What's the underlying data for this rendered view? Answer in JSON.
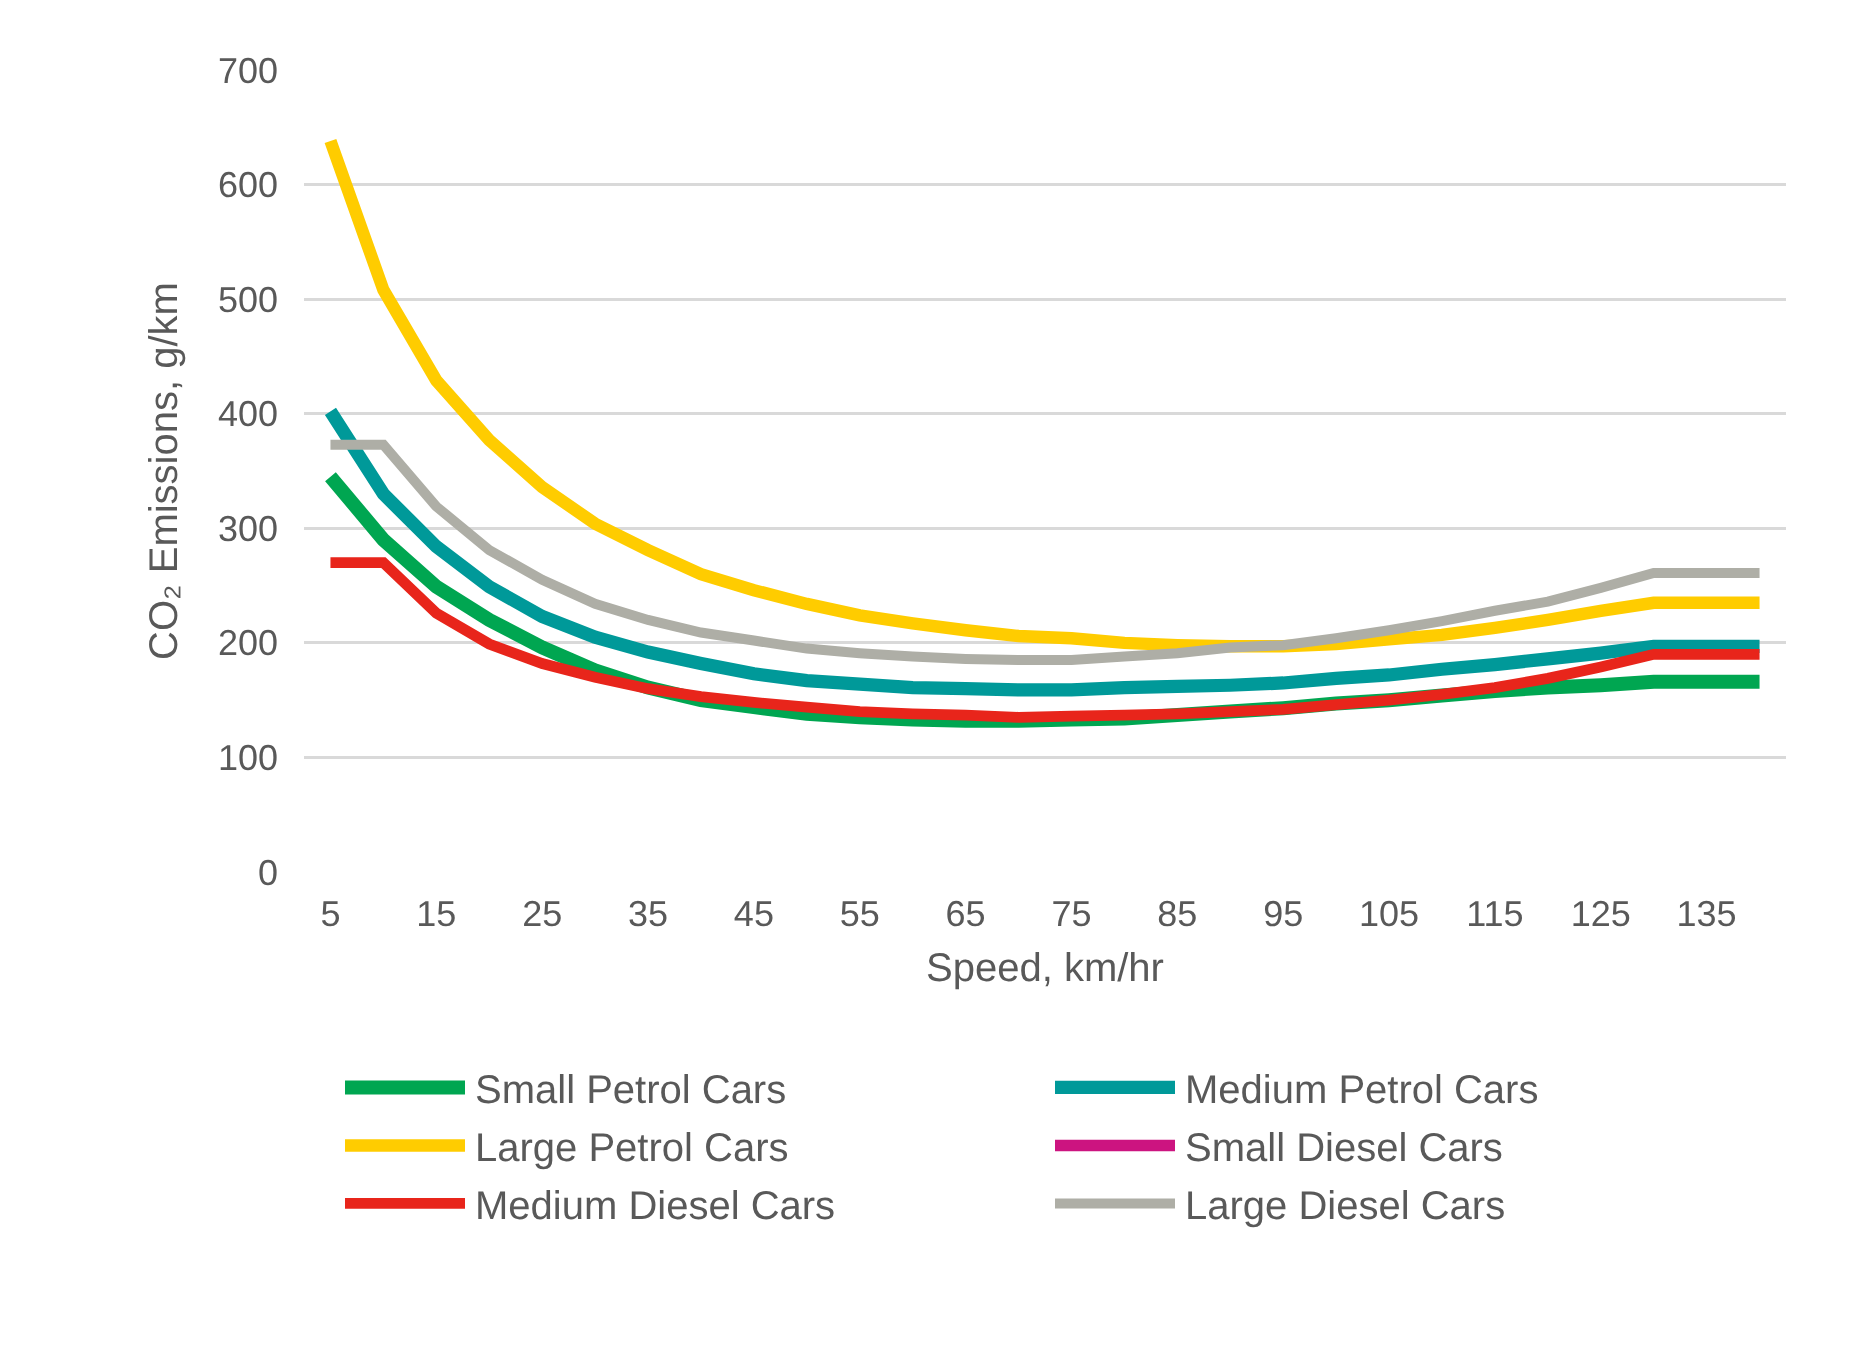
{
  "chart_data": {
    "type": "line",
    "xlabel": "Speed, km/hr",
    "ylabel": "CO₂ Emissions, g/km",
    "x": [
      5,
      10,
      15,
      20,
      25,
      30,
      35,
      40,
      45,
      50,
      55,
      60,
      65,
      70,
      75,
      80,
      85,
      90,
      95,
      100,
      105,
      110,
      115,
      120,
      125,
      130,
      135,
      140
    ],
    "xlim": [
      2.5,
      142.5
    ],
    "xticks": [
      5,
      15,
      25,
      35,
      45,
      55,
      65,
      75,
      85,
      95,
      105,
      115,
      125,
      135
    ],
    "ylim": [
      0,
      700
    ],
    "yticks": [
      0,
      100,
      200,
      300,
      400,
      500,
      600,
      700
    ],
    "grid": "y",
    "legend": "bottom",
    "marker": "none",
    "line_style": "solid",
    "series": [
      {
        "name": "Small Petrol Cars",
        "color": "#00a651",
        "values": [
          345,
          290,
          249,
          220,
          196,
          176,
          161,
          150,
          144,
          138,
          135,
          133,
          132,
          132,
          133,
          134,
          137,
          140,
          143,
          147,
          150,
          154,
          158,
          161,
          163,
          166,
          166,
          166
        ]
      },
      {
        "name": "Medium Petrol Cars",
        "color": "#009999",
        "values": [
          402,
          330,
          284,
          249,
          223,
          205,
          192,
          182,
          173,
          167,
          164,
          161,
          160,
          159,
          159,
          161,
          162,
          163,
          165,
          169,
          172,
          177,
          181,
          186,
          191,
          197,
          197,
          197
        ]
      },
      {
        "name": "Large Petrol Cars",
        "color": "#ffcc00",
        "values": [
          638,
          508,
          429,
          377,
          336,
          304,
          281,
          260,
          246,
          234,
          224,
          217,
          211,
          206,
          204,
          200,
          198,
          197,
          197,
          199,
          203,
          207,
          213,
          220,
          228,
          235,
          235,
          235
        ]
      },
      {
        "name": "Small Diesel Cars",
        "color": "#cc1480",
        "values": [
          null,
          null,
          null,
          null,
          null,
          null,
          null,
          null,
          null,
          null,
          null,
          null,
          null,
          null,
          null,
          null,
          null,
          null,
          null,
          null,
          null,
          null,
          null,
          null,
          null,
          null,
          null,
          null
        ]
      },
      {
        "name": "Medium Diesel Cars",
        "color": "#e8251b",
        "values": [
          270,
          270,
          226,
          199,
          182,
          170,
          160,
          153,
          148,
          144,
          140,
          138,
          137,
          135,
          136,
          137,
          138,
          140,
          142,
          146,
          150,
          155,
          161,
          169,
          179,
          190,
          190,
          190
        ]
      },
      {
        "name": "Large Diesel Cars",
        "color": "#aeaea6",
        "values": [
          373,
          373,
          319,
          281,
          255,
          234,
          220,
          209,
          202,
          195,
          191,
          188,
          186,
          185,
          185,
          188,
          191,
          196,
          198,
          204,
          211,
          219,
          228,
          236,
          248,
          261,
          261,
          261
        ]
      }
    ]
  }
}
